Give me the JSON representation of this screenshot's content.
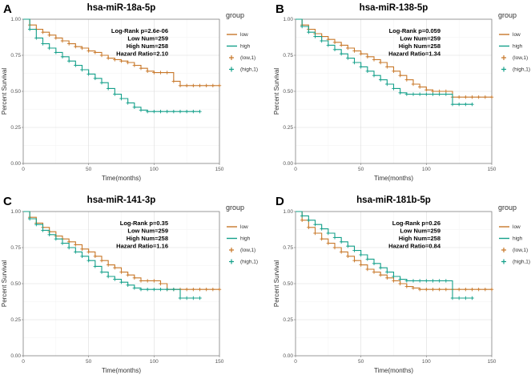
{
  "colors": {
    "low": "#C8782A",
    "high": "#14A08A"
  },
  "chart_data": [
    {
      "type": "line",
      "label": "A",
      "title": "hsa-miR-18a-5p",
      "xlabel": "Time(months)",
      "ylabel": "Percent Survival",
      "xlim": [
        0,
        150
      ],
      "ylim": [
        0,
        1
      ],
      "xticks": [
        "0",
        "50",
        "100",
        "150"
      ],
      "yticks": [
        "0.00",
        "0.25",
        "0.50",
        "0.75",
        "1.00"
      ],
      "stats": [
        "Log-Rank p=2.6e-06",
        "Low Num=259",
        "High Num=258",
        "Hazard Ratio=2.10"
      ],
      "legend": {
        "title": "group",
        "items": [
          "low",
          "high",
          "(low,1)",
          "(high,1)"
        ]
      },
      "series": [
        {
          "name": "low",
          "x": [
            0,
            5,
            10,
            15,
            20,
            25,
            30,
            35,
            40,
            45,
            50,
            55,
            60,
            65,
            70,
            75,
            80,
            85,
            90,
            95,
            100,
            105,
            110,
            115,
            120,
            125,
            130,
            135,
            140,
            145,
            150
          ],
          "y": [
            1.0,
            0.96,
            0.93,
            0.91,
            0.89,
            0.87,
            0.85,
            0.83,
            0.81,
            0.8,
            0.78,
            0.77,
            0.75,
            0.73,
            0.72,
            0.71,
            0.7,
            0.68,
            0.66,
            0.64,
            0.63,
            0.63,
            0.63,
            0.57,
            0.54,
            0.54,
            0.54,
            0.54,
            0.54,
            0.54,
            0.54
          ]
        },
        {
          "name": "high",
          "x": [
            0,
            5,
            10,
            15,
            20,
            25,
            30,
            35,
            40,
            45,
            50,
            55,
            60,
            65,
            70,
            75,
            80,
            85,
            90,
            95,
            100,
            105,
            110,
            115,
            120,
            125,
            130,
            135
          ],
          "y": [
            1.0,
            0.93,
            0.87,
            0.83,
            0.8,
            0.77,
            0.74,
            0.71,
            0.68,
            0.65,
            0.62,
            0.59,
            0.56,
            0.52,
            0.48,
            0.45,
            0.42,
            0.39,
            0.37,
            0.36,
            0.36,
            0.36,
            0.36,
            0.36,
            0.36,
            0.36,
            0.36,
            0.36
          ]
        }
      ]
    },
    {
      "type": "line",
      "label": "B",
      "title": "hsa-miR-138-5p",
      "xlabel": "Time(months)",
      "ylabel": "Percent Survival",
      "xlim": [
        0,
        150
      ],
      "ylim": [
        0,
        1
      ],
      "xticks": [
        "0",
        "50",
        "100",
        "150"
      ],
      "yticks": [
        "0.00",
        "0.25",
        "0.50",
        "0.75",
        "1.00"
      ],
      "stats": [
        "Log-Rank p=0.059",
        "Low Num=259",
        "High Num=258",
        "Hazard Ratio=1.34"
      ],
      "legend": {
        "title": "group",
        "items": [
          "low",
          "high",
          "(low,1)",
          "(high,1)"
        ]
      },
      "series": [
        {
          "name": "low",
          "x": [
            0,
            5,
            10,
            15,
            20,
            25,
            30,
            35,
            40,
            45,
            50,
            55,
            60,
            65,
            70,
            75,
            80,
            85,
            90,
            95,
            100,
            105,
            110,
            115,
            120,
            125,
            130,
            135,
            140,
            145,
            150
          ],
          "y": [
            1.0,
            0.96,
            0.93,
            0.9,
            0.88,
            0.86,
            0.84,
            0.82,
            0.8,
            0.78,
            0.76,
            0.74,
            0.72,
            0.7,
            0.67,
            0.64,
            0.61,
            0.58,
            0.55,
            0.53,
            0.51,
            0.5,
            0.5,
            0.5,
            0.46,
            0.46,
            0.46,
            0.46,
            0.46,
            0.46,
            0.46
          ]
        },
        {
          "name": "high",
          "x": [
            0,
            5,
            10,
            15,
            20,
            25,
            30,
            35,
            40,
            45,
            50,
            55,
            60,
            65,
            70,
            75,
            80,
            85,
            90,
            95,
            100,
            105,
            110,
            115,
            120,
            125,
            130,
            135
          ],
          "y": [
            1.0,
            0.95,
            0.91,
            0.88,
            0.85,
            0.82,
            0.79,
            0.76,
            0.73,
            0.7,
            0.67,
            0.64,
            0.61,
            0.58,
            0.55,
            0.52,
            0.49,
            0.48,
            0.48,
            0.48,
            0.48,
            0.48,
            0.48,
            0.48,
            0.41,
            0.41,
            0.41,
            0.41
          ]
        }
      ]
    },
    {
      "type": "line",
      "label": "C",
      "title": "hsa-miR-141-3p",
      "xlabel": "Time(months)",
      "ylabel": "Percent Survival",
      "xlim": [
        0,
        150
      ],
      "ylim": [
        0,
        1
      ],
      "xticks": [
        "0",
        "50",
        "100",
        "150"
      ],
      "yticks": [
        "0.00",
        "0.25",
        "0.50",
        "0.75",
        "1.00"
      ],
      "stats": [
        "Log-Rank p=0.35",
        "Low Num=259",
        "High Num=258",
        "Hazard Ratio=1.16"
      ],
      "legend": {
        "title": "group",
        "items": [
          "low",
          "high",
          "(low,1)",
          "(high,1)"
        ]
      },
      "series": [
        {
          "name": "low",
          "x": [
            0,
            5,
            10,
            15,
            20,
            25,
            30,
            35,
            40,
            45,
            50,
            55,
            60,
            65,
            70,
            75,
            80,
            85,
            90,
            95,
            100,
            105,
            110,
            115,
            120,
            125,
            130,
            135,
            140,
            145,
            150
          ],
          "y": [
            1.0,
            0.96,
            0.92,
            0.89,
            0.86,
            0.83,
            0.81,
            0.79,
            0.77,
            0.74,
            0.72,
            0.69,
            0.66,
            0.63,
            0.61,
            0.58,
            0.56,
            0.54,
            0.52,
            0.52,
            0.52,
            0.5,
            0.46,
            0.46,
            0.46,
            0.46,
            0.46,
            0.46,
            0.46,
            0.46,
            0.46
          ]
        },
        {
          "name": "high",
          "x": [
            0,
            5,
            10,
            15,
            20,
            25,
            30,
            35,
            40,
            45,
            50,
            55,
            60,
            65,
            70,
            75,
            80,
            85,
            90,
            95,
            100,
            105,
            110,
            115,
            120,
            125,
            130,
            135
          ],
          "y": [
            1.0,
            0.95,
            0.91,
            0.87,
            0.84,
            0.81,
            0.78,
            0.75,
            0.72,
            0.69,
            0.66,
            0.62,
            0.58,
            0.55,
            0.53,
            0.51,
            0.49,
            0.47,
            0.46,
            0.46,
            0.46,
            0.46,
            0.46,
            0.46,
            0.4,
            0.4,
            0.4,
            0.4
          ]
        }
      ]
    },
    {
      "type": "line",
      "label": "D",
      "title": "hsa-miR-181b-5p",
      "xlabel": "Time(months)",
      "ylabel": "Percent Survival",
      "xlim": [
        0,
        150
      ],
      "ylim": [
        0,
        1
      ],
      "xticks": [
        "0",
        "50",
        "100",
        "150"
      ],
      "yticks": [
        "0.00",
        "0.25",
        "0.50",
        "0.75",
        "1.00"
      ],
      "stats": [
        "Log-Rank p=0.26",
        "Low Num=259",
        "High Num=258",
        "Hazard Ratio=0.84"
      ],
      "legend": {
        "title": "group",
        "items": [
          "low",
          "high",
          "(low,1)",
          "(high,1)"
        ]
      },
      "series": [
        {
          "name": "low",
          "x": [
            0,
            5,
            10,
            15,
            20,
            25,
            30,
            35,
            40,
            45,
            50,
            55,
            60,
            65,
            70,
            75,
            80,
            85,
            90,
            95,
            100,
            105,
            110,
            115,
            120,
            125,
            130,
            135,
            140,
            145,
            150
          ],
          "y": [
            1.0,
            0.94,
            0.89,
            0.85,
            0.81,
            0.78,
            0.75,
            0.72,
            0.69,
            0.66,
            0.63,
            0.6,
            0.58,
            0.56,
            0.54,
            0.52,
            0.5,
            0.48,
            0.47,
            0.46,
            0.46,
            0.46,
            0.46,
            0.46,
            0.46,
            0.46,
            0.46,
            0.46,
            0.46,
            0.46,
            0.46
          ]
        },
        {
          "name": "high",
          "x": [
            0,
            5,
            10,
            15,
            20,
            25,
            30,
            35,
            40,
            45,
            50,
            55,
            60,
            65,
            70,
            75,
            80,
            85,
            90,
            95,
            100,
            105,
            110,
            115,
            120,
            125,
            130,
            135
          ],
          "y": [
            1.0,
            0.97,
            0.94,
            0.91,
            0.88,
            0.85,
            0.82,
            0.79,
            0.76,
            0.73,
            0.7,
            0.67,
            0.64,
            0.61,
            0.58,
            0.55,
            0.53,
            0.52,
            0.52,
            0.52,
            0.52,
            0.52,
            0.52,
            0.52,
            0.4,
            0.4,
            0.4,
            0.4
          ]
        }
      ]
    }
  ]
}
